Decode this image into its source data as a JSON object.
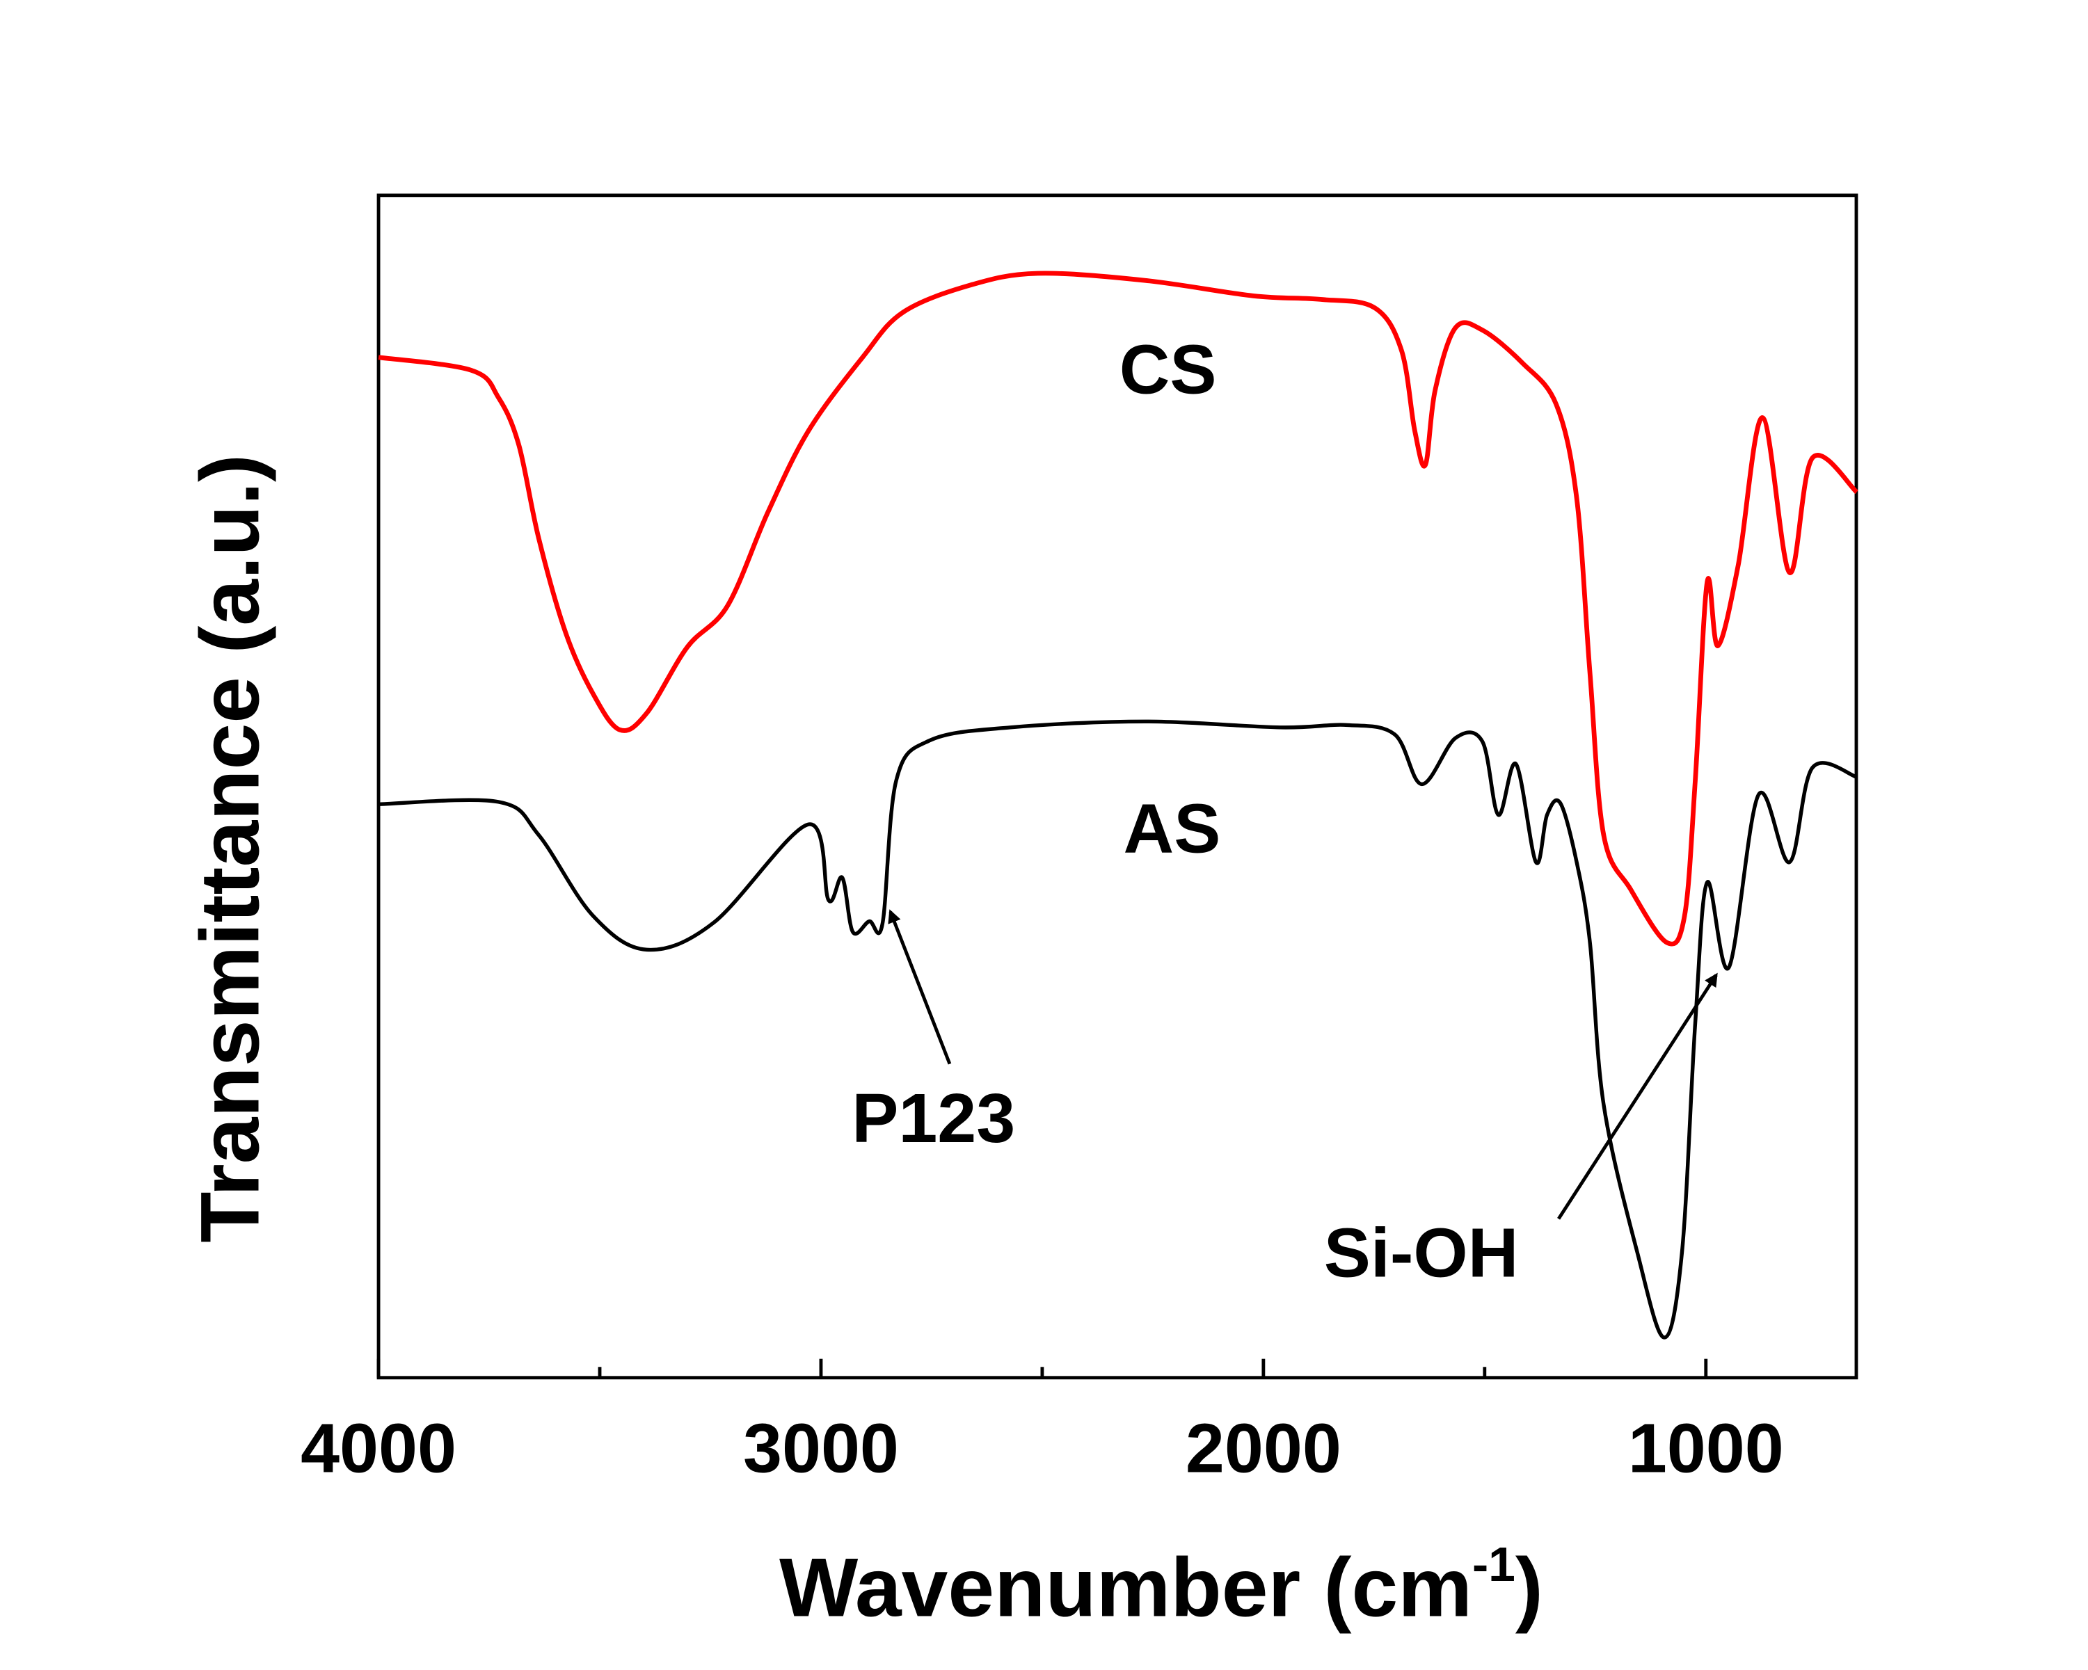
{
  "chart_data": {
    "type": "line",
    "title": "",
    "xlabel": "Wavenumber (cm",
    "xlabel_sup": "-1",
    "xlabel_close": ")",
    "ylabel": "Transmittance (a.u.)",
    "xlim": [
      4000,
      660
    ],
    "ylim": [
      0,
      100
    ],
    "x_reversed": true,
    "grid": false,
    "legend": "none",
    "xticks": [
      4000,
      3000,
      2000,
      1000
    ],
    "xtick_labels": [
      "4000",
      "3000",
      "2000",
      "1000"
    ],
    "xminor_ticks": [
      3500,
      2500,
      1500
    ],
    "series": [
      {
        "name": "CS",
        "color": "#ff0000",
        "x": [
          4000,
          3790,
          3729,
          3683,
          3638,
          3577,
          3516,
          3455,
          3394,
          3302,
          3211,
          3120,
          3028,
          2906,
          2815,
          2663,
          2510,
          2267,
          2023,
          1871,
          1749,
          1688,
          1658,
          1634,
          1612,
          1566,
          1505,
          1414,
          1338,
          1292,
          1262,
          1231,
          1170,
          1088,
          1048,
          1024,
          997,
          973,
          927,
          872,
          811,
          759,
          659
        ],
        "y": [
          86.3,
          85.2,
          82.9,
          78.9,
          71.0,
          63.0,
          57.9,
          54.8,
          56.2,
          61.8,
          65.3,
          73.2,
          80.1,
          86.3,
          90.1,
          92.4,
          93.4,
          92.8,
          91.5,
          91.2,
          90.5,
          86.9,
          80.1,
          77.2,
          83.5,
          88.8,
          88.6,
          85.8,
          82.3,
          74.4,
          59.6,
          45.9,
          41.3,
          36.8,
          39.1,
          50.5,
          67.3,
          61.9,
          68.7,
          81.2,
          68.1,
          77.8,
          74.9
        ]
      },
      {
        "name": "AS",
        "color": "#000000",
        "x": [
          4000,
          3729,
          3638,
          3516,
          3394,
          3242,
          3028,
          2983,
          2952,
          2928,
          2891,
          2861,
          2830,
          2754,
          2572,
          2267,
          1962,
          1810,
          1703,
          1642,
          1566,
          1505,
          1469,
          1429,
          1384,
          1359,
          1329,
          1292,
          1262,
          1231,
          1155,
          1094,
          1054,
          1024,
          997,
          948,
          881,
          811,
          759,
          659
        ],
        "y": [
          48.5,
          48.7,
          45.9,
          39.1,
          36.2,
          38.5,
          46.8,
          40.4,
          42.3,
          37.7,
          38.6,
          38.4,
          50.5,
          53.9,
          55.0,
          55.5,
          55.0,
          55.2,
          54.4,
          50.2,
          54.1,
          53.8,
          47.6,
          51.9,
          43.6,
          47.6,
          48.6,
          43.6,
          36.8,
          23.1,
          10.6,
          3.4,
          10.6,
          30.0,
          41.9,
          34.7,
          49.3,
          43.6,
          51.6,
          50.8
        ]
      }
    ],
    "annotations": [
      {
        "text": "CS"
      },
      {
        "text": "AS"
      },
      {
        "text": "P123"
      },
      {
        "text": "Si-OH"
      }
    ]
  }
}
